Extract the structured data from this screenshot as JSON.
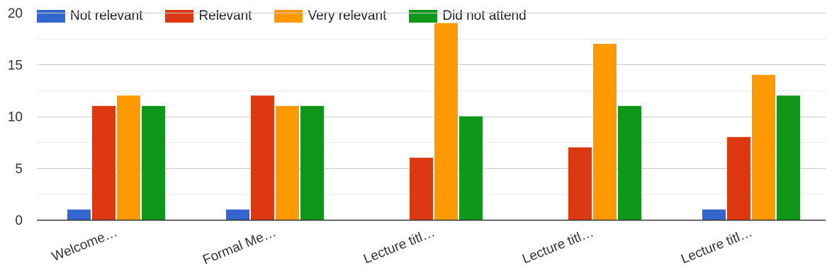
{
  "chart_data": {
    "type": "bar",
    "title": "",
    "xlabel": "",
    "ylabel": "",
    "categories": [
      "Welcome…",
      "Formal Me…",
      "Lecture titl…",
      "Lecture titl…",
      "Lecture titl…"
    ],
    "series": [
      {
        "name": "Not relevant",
        "color": "#3366cc",
        "values": [
          1,
          1,
          0,
          0,
          1
        ]
      },
      {
        "name": "Relevant",
        "color": "#dc3912",
        "values": [
          11,
          12,
          6,
          7,
          8
        ]
      },
      {
        "name": "Very relevant",
        "color": "#ff9900",
        "values": [
          12,
          11,
          19,
          17,
          14
        ]
      },
      {
        "name": "Did not attend",
        "color": "#109618",
        "values": [
          11,
          11,
          10,
          11,
          12
        ]
      }
    ],
    "ylim": [
      0,
      20
    ],
    "yticks": [
      0,
      5,
      10,
      15,
      20
    ],
    "grid": true,
    "legend_position": "top-left"
  }
}
